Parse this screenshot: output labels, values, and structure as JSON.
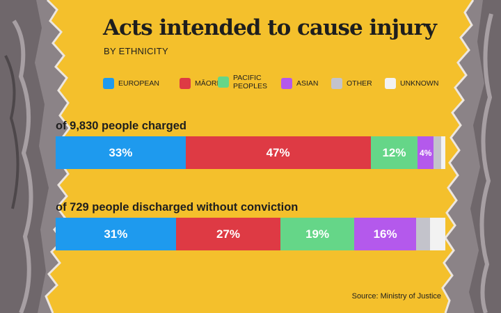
{
  "title": "Acts intended to cause injury",
  "subtitle": "BY ETHNICITY",
  "source": "Source: Ministry of Justice",
  "colors": {
    "background": "#f4c02c",
    "text": "#1e1e1e"
  },
  "chart_data": {
    "type": "stacked-bar",
    "orientation": "horizontal",
    "title": "Acts intended to cause injury",
    "subtitle": "BY ETHNICITY",
    "unit": "percent",
    "legend": [
      {
        "key": "european",
        "label": "EUROPEAN",
        "color": "#1e9aee"
      },
      {
        "key": "maori",
        "label": "MĀORI",
        "color": "#de3a44"
      },
      {
        "key": "pacific",
        "label": "PACIFIC PEOPLES",
        "color": "#65d688"
      },
      {
        "key": "asian",
        "label": "ASIAN",
        "color": "#b459ec"
      },
      {
        "key": "other",
        "label": "OTHER",
        "color": "#c3c3cb"
      },
      {
        "key": "unknown",
        "label": "UNKNOWN",
        "color": "#f2f2f2"
      }
    ],
    "series": [
      {
        "name": "of 9,830 people charged",
        "values": [
          {
            "key": "european",
            "value": 33,
            "label": "33%"
          },
          {
            "key": "maori",
            "value": 47,
            "label": "47%"
          },
          {
            "key": "pacific",
            "value": 12,
            "label": "12%"
          },
          {
            "key": "asian",
            "value": 4,
            "label": "4%"
          },
          {
            "key": "other",
            "value": 2,
            "label": ""
          },
          {
            "key": "unknown",
            "value": 1,
            "label": ""
          }
        ]
      },
      {
        "name": "of 729 people discharged without conviction",
        "values": [
          {
            "key": "european",
            "value": 31,
            "label": "31%"
          },
          {
            "key": "maori",
            "value": 27,
            "label": "27%"
          },
          {
            "key": "pacific",
            "value": 19,
            "label": "19%"
          },
          {
            "key": "asian",
            "value": 16,
            "label": "16%"
          },
          {
            "key": "other",
            "value": 3.5,
            "label": ""
          },
          {
            "key": "unknown",
            "value": 4,
            "label": ""
          }
        ]
      }
    ]
  }
}
